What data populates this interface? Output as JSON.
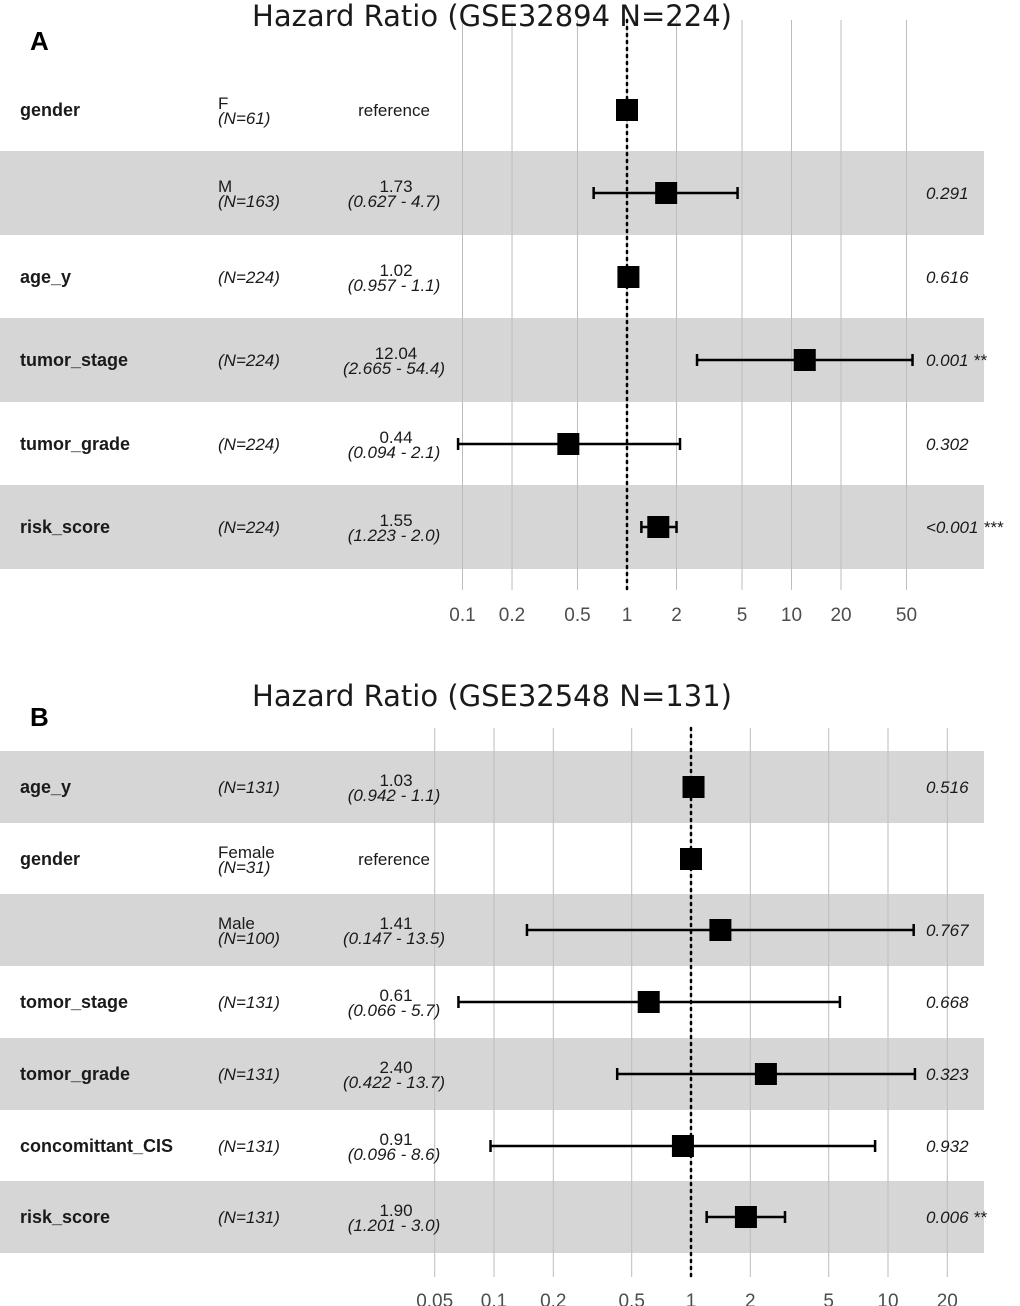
{
  "chart_data": [
    {
      "type": "forest",
      "panel": "A",
      "title": "Hazard Ratio (GSE32894 N=224)",
      "scale": "log",
      "reference_line": 1,
      "ticks": [
        0.1,
        0.2,
        0.5,
        1,
        2,
        5,
        10,
        20,
        50
      ],
      "tick_labels": [
        "0.1",
        "0.2",
        "0.5",
        "1",
        "2",
        "5",
        "10",
        "20",
        "50"
      ],
      "rows": [
        {
          "variable": "gender",
          "level": "F",
          "n": "(N=61)",
          "hr_text": "reference",
          "ci_text": "",
          "p_text": "",
          "hr": 1.0,
          "lo": null,
          "hi": null,
          "shaded": false
        },
        {
          "variable": "",
          "level": "M",
          "n": "(N=163)",
          "hr_text": "1.73",
          "ci_text": "(0.627 -  4.7)",
          "p_text": "0.291",
          "hr": 1.73,
          "lo": 0.627,
          "hi": 4.7,
          "shaded": true
        },
        {
          "variable": "age_y",
          "level": "",
          "n": "(N=224)",
          "hr_text": "1.02",
          "ci_text": "(0.957 -  1.1)",
          "p_text": "0.616",
          "hr": 1.02,
          "lo": 0.957,
          "hi": 1.1,
          "shaded": false
        },
        {
          "variable": "tumor_stage",
          "level": "",
          "n": "(N=224)",
          "hr_text": "12.04",
          "ci_text": "(2.665 - 54.4)",
          "p_text": "0.001 **",
          "hr": 12.04,
          "lo": 2.665,
          "hi": 54.4,
          "shaded": true
        },
        {
          "variable": "tumor_grade",
          "level": "",
          "n": "(N=224)",
          "hr_text": "0.44",
          "ci_text": "(0.094 -  2.1)",
          "p_text": "0.302",
          "hr": 0.44,
          "lo": 0.094,
          "hi": 2.1,
          "shaded": false
        },
        {
          "variable": "risk_score",
          "level": "",
          "n": "(N=224)",
          "hr_text": "1.55",
          "ci_text": "(1.223 -  2.0)",
          "p_text": "<0.001 ***",
          "hr": 1.55,
          "lo": 1.223,
          "hi": 2.0,
          "shaded": true
        }
      ]
    },
    {
      "type": "forest",
      "panel": "B",
      "title": "Hazard Ratio (GSE32548 N=131)",
      "scale": "log",
      "reference_line": 1,
      "ticks": [
        0.05,
        0.1,
        0.2,
        0.5,
        1,
        2,
        5,
        10,
        20
      ],
      "tick_labels": [
        "0.05",
        "0.1",
        "0.2",
        "0.5",
        "1",
        "2",
        "5",
        "10",
        "20"
      ],
      "rows": [
        {
          "variable": "age_y",
          "level": "",
          "n": "(N=131)",
          "hr_text": "1.03",
          "ci_text": "(0.942 -  1.1)",
          "p_text": "0.516",
          "hr": 1.03,
          "lo": 0.942,
          "hi": 1.1,
          "shaded": true
        },
        {
          "variable": "gender",
          "level": "Female",
          "n": "(N=31)",
          "hr_text": "reference",
          "ci_text": "",
          "p_text": "",
          "hr": 1.0,
          "lo": null,
          "hi": null,
          "shaded": false
        },
        {
          "variable": "",
          "level": "Male",
          "n": "(N=100)",
          "hr_text": "1.41",
          "ci_text": "(0.147 - 13.5)",
          "p_text": "0.767",
          "hr": 1.41,
          "lo": 0.147,
          "hi": 13.5,
          "shaded": true
        },
        {
          "variable": "tomor_stage",
          "level": "",
          "n": "(N=131)",
          "hr_text": "0.61",
          "ci_text": "(0.066 -  5.7)",
          "p_text": "0.668",
          "hr": 0.61,
          "lo": 0.066,
          "hi": 5.7,
          "shaded": false
        },
        {
          "variable": "tomor_grade",
          "level": "",
          "n": "(N=131)",
          "hr_text": "2.40",
          "ci_text": "(0.422 - 13.7)",
          "p_text": "0.323",
          "hr": 2.4,
          "lo": 0.422,
          "hi": 13.7,
          "shaded": true
        },
        {
          "variable": "concomittant_CIS",
          "level": "",
          "n": "(N=131)",
          "hr_text": "0.91",
          "ci_text": "(0.096 -  8.6)",
          "p_text": "0.932",
          "hr": 0.91,
          "lo": 0.096,
          "hi": 8.6,
          "shaded": false
        },
        {
          "variable": "risk_score",
          "level": "",
          "n": "(N=131)",
          "hr_text": "1.90",
          "ci_text": "(1.201 -  3.0)",
          "p_text": "0.006 **",
          "hr": 1.9,
          "lo": 1.201,
          "hi": 3.0,
          "shaded": true
        }
      ]
    }
  ]
}
